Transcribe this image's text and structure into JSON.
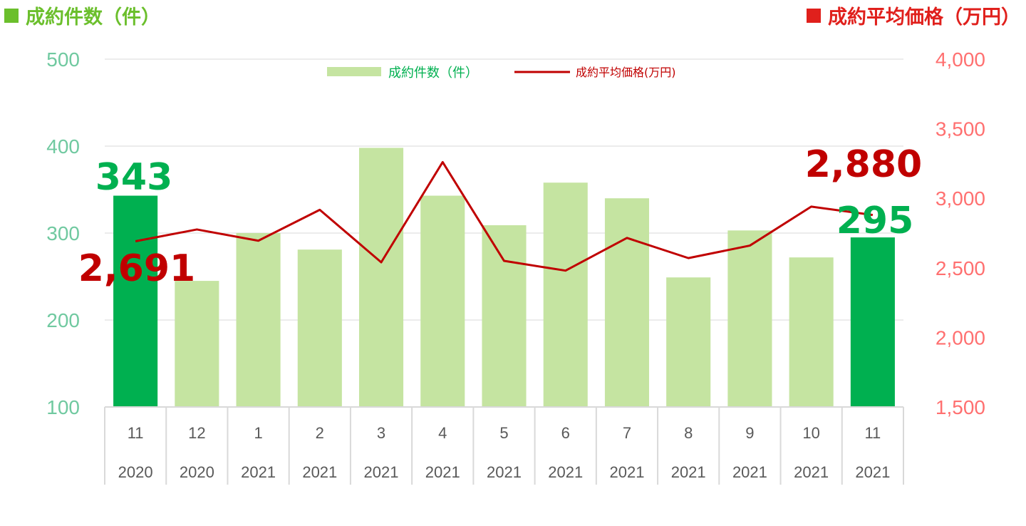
{
  "header": {
    "left_title": "成約件数（件）",
    "right_title": "成約平均価格（万円）"
  },
  "colors": {
    "bar_light": "#c5e4a1",
    "bar_highlight": "#00b050",
    "line": "#c00000",
    "left_axis": "#70c9a0",
    "right_axis": "#ff7070",
    "left_title": "#6bbf2c",
    "right_title": "#e0201c",
    "grid": "#d9d9d9"
  },
  "chart_data": {
    "type": "bar",
    "title": "",
    "categories": [
      [
        "11",
        "2020"
      ],
      [
        "12",
        "2020"
      ],
      [
        "1",
        "2021"
      ],
      [
        "2",
        "2021"
      ],
      [
        "3",
        "2021"
      ],
      [
        "4",
        "2021"
      ],
      [
        "5",
        "2021"
      ],
      [
        "6",
        "2021"
      ],
      [
        "7",
        "2021"
      ],
      [
        "8",
        "2021"
      ],
      [
        "9",
        "2021"
      ],
      [
        "10",
        "2021"
      ],
      [
        "11",
        "2021"
      ]
    ],
    "series": [
      {
        "name": "成約件数（件）",
        "type": "bar",
        "axis": "left",
        "values": [
          343,
          245,
          300,
          281,
          398,
          343,
          309,
          358,
          340,
          249,
          303,
          272,
          295
        ],
        "highlight_indices": [
          0,
          12
        ]
      },
      {
        "name": "成約平均価格(万円)",
        "type": "line",
        "axis": "right",
        "values": [
          2691,
          2776,
          2695,
          2917,
          2540,
          3260,
          2550,
          2480,
          2715,
          2570,
          2660,
          2940,
          2880
        ]
      }
    ],
    "y_left": {
      "ylim": [
        100,
        500
      ],
      "ticks": [
        "100",
        "200",
        "300",
        "400",
        "500"
      ]
    },
    "y_right": {
      "ylim": [
        1500,
        4000
      ],
      "ticks": [
        "1,500",
        "2,000",
        "2,500",
        "3,000",
        "3,500",
        "4,000"
      ]
    },
    "grid": true,
    "legend_placement": "top-center",
    "data_labels": [
      {
        "text": "343",
        "series": 0,
        "index": 0
      },
      {
        "text": "295",
        "series": 0,
        "index": 12
      },
      {
        "text": "2,691",
        "series": 1,
        "index": 0
      },
      {
        "text": "2,880",
        "series": 1,
        "index": 12
      }
    ]
  }
}
